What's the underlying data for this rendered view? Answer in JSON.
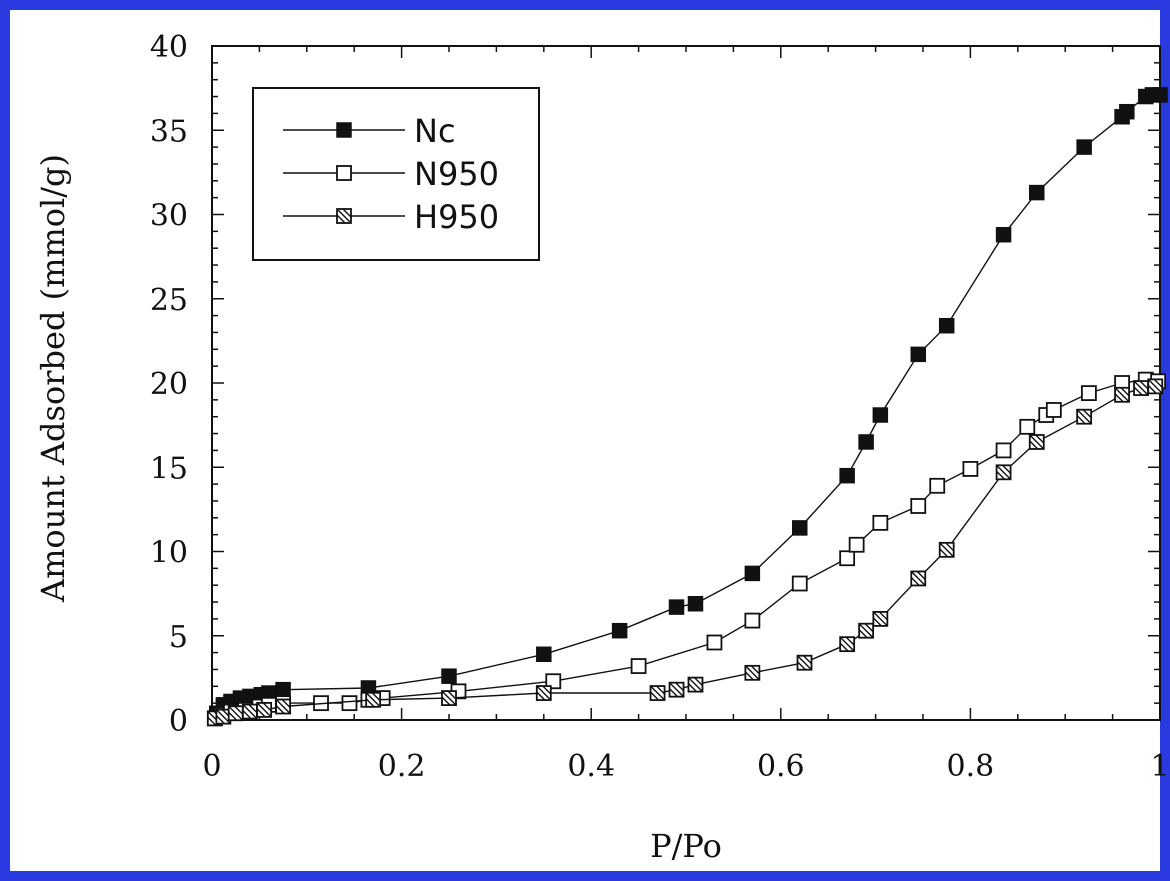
{
  "chart_data": {
    "type": "line",
    "title": "",
    "xlabel": "P/Po",
    "ylabel": "Amount Adsorbed (mmol/g)",
    "xlim": [
      0,
      1
    ],
    "ylim": [
      0,
      40
    ],
    "xticks": [
      "0",
      "0.2",
      "0.4",
      "0.6",
      "0.8",
      "1"
    ],
    "yticks": [
      "0",
      "5",
      "10",
      "15",
      "20",
      "25",
      "30",
      "35",
      "40"
    ],
    "grid": false,
    "legend": "top-left",
    "colors": {
      "frame": "#2a3ae0",
      "ink": "#111111"
    },
    "series": [
      {
        "name": "Nc",
        "marker": "filled-square",
        "x": [
          0.005,
          0.012,
          0.02,
          0.03,
          0.04,
          0.052,
          0.06,
          0.075,
          0.165,
          0.25,
          0.35,
          0.43,
          0.49,
          0.51,
          0.57,
          0.62,
          0.67,
          0.69,
          0.705,
          0.745,
          0.775,
          0.835,
          0.87,
          0.92,
          0.96,
          0.965,
          0.985,
          0.992,
          1.0
        ],
        "y": [
          0.4,
          0.9,
          1.1,
          1.3,
          1.4,
          1.5,
          1.6,
          1.8,
          1.9,
          2.6,
          3.9,
          5.3,
          6.7,
          6.9,
          8.7,
          11.4,
          14.5,
          16.5,
          18.1,
          21.7,
          23.4,
          28.8,
          31.3,
          34.0,
          35.8,
          36.1,
          37.0,
          37.1,
          37.1
        ]
      },
      {
        "name": "N950",
        "marker": "open-square",
        "x": [
          0.003,
          0.01,
          0.02,
          0.035,
          0.05,
          0.06,
          0.075,
          0.115,
          0.145,
          0.165,
          0.18,
          0.26,
          0.36,
          0.45,
          0.53,
          0.57,
          0.62,
          0.67,
          0.68,
          0.705,
          0.745,
          0.765,
          0.8,
          0.835,
          0.86,
          0.88,
          0.888,
          0.925,
          0.96,
          0.985,
          0.998
        ],
        "y": [
          0.1,
          0.3,
          0.5,
          0.6,
          0.8,
          0.9,
          1.0,
          1.0,
          1.0,
          1.2,
          1.3,
          1.7,
          2.3,
          3.2,
          4.6,
          5.9,
          8.1,
          9.6,
          10.4,
          11.7,
          12.7,
          13.9,
          14.9,
          16.0,
          17.4,
          18.1,
          18.4,
          19.4,
          20.0,
          20.2,
          20.1
        ]
      },
      {
        "name": "H950",
        "marker": "hatched-square",
        "x": [
          0.003,
          0.012,
          0.025,
          0.04,
          0.055,
          0.075,
          0.17,
          0.25,
          0.35,
          0.47,
          0.49,
          0.51,
          0.57,
          0.625,
          0.67,
          0.69,
          0.705,
          0.745,
          0.775,
          0.835,
          0.87,
          0.92,
          0.96,
          0.98,
          0.995
        ],
        "y": [
          0.1,
          0.2,
          0.4,
          0.5,
          0.6,
          0.8,
          1.2,
          1.3,
          1.6,
          1.6,
          1.8,
          2.1,
          2.8,
          3.4,
          4.5,
          5.3,
          6.0,
          8.4,
          10.1,
          14.7,
          16.5,
          18.0,
          19.3,
          19.7,
          19.8
        ]
      }
    ]
  }
}
